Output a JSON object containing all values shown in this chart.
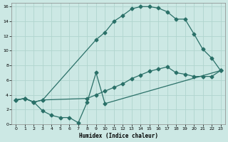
{
  "xlabel": "Humidex (Indice chaleur)",
  "bg_color": "#cce8e4",
  "grid_color": "#b0d4ce",
  "line_color": "#2a7068",
  "xlim": [
    -0.5,
    23.5
  ],
  "ylim": [
    0,
    16.5
  ],
  "xticks": [
    0,
    1,
    2,
    3,
    4,
    5,
    6,
    7,
    8,
    9,
    10,
    11,
    12,
    13,
    14,
    15,
    16,
    17,
    18,
    19,
    20,
    21,
    22,
    23
  ],
  "yticks": [
    0,
    2,
    4,
    6,
    8,
    10,
    12,
    14,
    16
  ],
  "curve_top_x": [
    0,
    1,
    2,
    3,
    9,
    10,
    11,
    12,
    13,
    14,
    15,
    16,
    17,
    18,
    19,
    20,
    21,
    22,
    23
  ],
  "curve_top_y": [
    3.3,
    3.5,
    3.0,
    3.3,
    11.5,
    12.5,
    14.0,
    14.8,
    15.7,
    16.0,
    16.0,
    15.8,
    15.3,
    14.3,
    14.3,
    12.3,
    10.2,
    9.0,
    7.3
  ],
  "curve_bottom_x": [
    0,
    1,
    2,
    3,
    4,
    5,
    6,
    7,
    8,
    9,
    10,
    23
  ],
  "curve_bottom_y": [
    3.3,
    3.5,
    3.0,
    1.8,
    1.2,
    0.9,
    0.9,
    0.2,
    3.0,
    7.0,
    2.8,
    7.3
  ],
  "curve_mid_x": [
    0,
    1,
    2,
    3,
    8,
    9,
    10,
    11,
    12,
    13,
    14,
    15,
    16,
    17,
    18,
    19,
    20,
    21,
    22,
    23
  ],
  "curve_mid_y": [
    3.3,
    3.5,
    3.0,
    3.3,
    3.5,
    4.0,
    4.5,
    5.0,
    5.5,
    6.2,
    6.7,
    7.2,
    7.5,
    7.8,
    7.0,
    6.8,
    6.5,
    6.5,
    6.5,
    7.3
  ]
}
